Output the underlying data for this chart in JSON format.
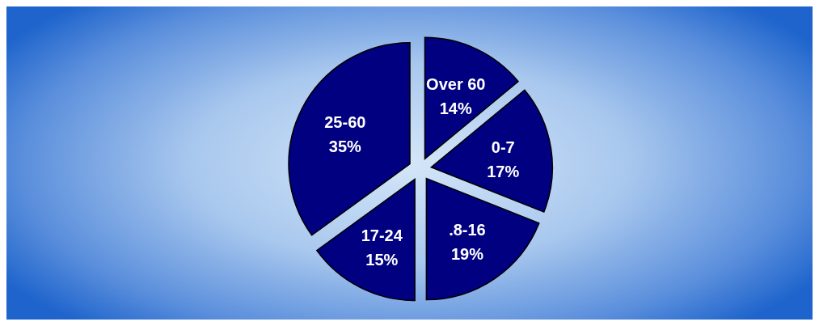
{
  "chart_data": {
    "type": "pie",
    "categories": [
      "Over 60",
      "0-7",
      ".8-16",
      "17-24",
      "25-60"
    ],
    "values": [
      14,
      17,
      19,
      15,
      35
    ],
    "value_labels": [
      "14%",
      "17%",
      "19%",
      "15%",
      "35%"
    ],
    "colors": [
      "#000080",
      "#000080",
      "#000080",
      "#000080",
      "#000080"
    ]
  }
}
